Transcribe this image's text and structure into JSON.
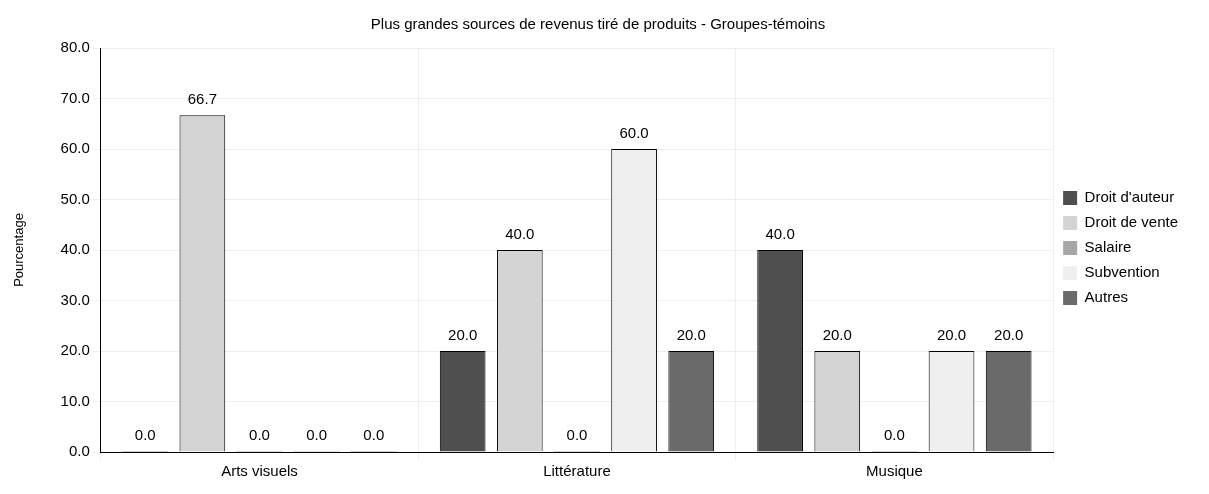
{
  "chart_data": {
    "type": "bar",
    "title": "Plus grandes sources de revenus tiré de produits - Groupes-témoins",
    "ylabel": "Pourcentage",
    "categories": [
      "Arts visuels",
      "Littérature",
      "Musique"
    ],
    "series": [
      {
        "name": "Droit d'auteur",
        "color": "#4f4f4f",
        "values": [
          0,
          20,
          40
        ],
        "value_labels": [
          "0.0",
          "20.0",
          "40.0"
        ]
      },
      {
        "name": "Droit de vente",
        "color": "#d4d4d4",
        "values": [
          66.7,
          40,
          20
        ],
        "value_labels": [
          "66.7",
          "40.0",
          "20.0"
        ]
      },
      {
        "name": "Salaire",
        "color": "#a6a6a6",
        "values": [
          0,
          0,
          0
        ],
        "value_labels": [
          "0.0",
          "0.0",
          "0.0"
        ]
      },
      {
        "name": "Subvention",
        "color": "#efefef",
        "values": [
          0,
          60,
          20
        ],
        "value_labels": [
          "0.0",
          "60.0",
          "20.0"
        ]
      },
      {
        "name": "Autres",
        "color": "#6a6a6a",
        "values": [
          0,
          20,
          20
        ],
        "value_labels": [
          "0.0",
          "20.0",
          "20.0"
        ]
      }
    ],
    "ylim": [
      0,
      80
    ],
    "yticks": [
      {
        "value": 0,
        "label": "0.0"
      },
      {
        "value": 10,
        "label": "10.0"
      },
      {
        "value": 20,
        "label": "20.0"
      },
      {
        "value": 30,
        "label": "30.0"
      },
      {
        "value": 40,
        "label": "40.0"
      },
      {
        "value": 50,
        "label": "50.0"
      },
      {
        "value": 60,
        "label": "60.0"
      },
      {
        "value": 70,
        "label": "70.0"
      },
      {
        "value": 80,
        "label": "80.0"
      }
    ],
    "grid": true,
    "legend": "right"
  }
}
